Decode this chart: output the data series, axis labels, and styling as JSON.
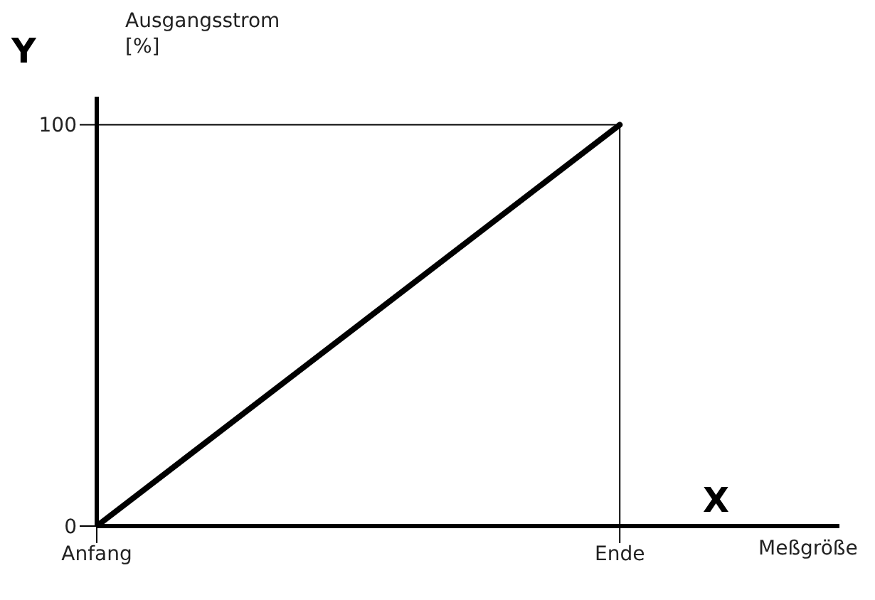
{
  "chart_data": {
    "type": "line",
    "ylabel": "Ausgangsstrom [%]",
    "xlabel": "Meßgröße",
    "annotations": [
      "Y",
      "X"
    ],
    "categories": [
      "Anfang",
      "Ende"
    ],
    "series": [
      {
        "color": "#000000",
        "values": [
          0,
          100
        ]
      }
    ],
    "ylim": [
      0,
      107
    ],
    "yticks": [
      0,
      100
    ],
    "ref_lines": [
      {
        "axis": "y",
        "value": 100,
        "color": "#000000"
      },
      {
        "axis": "x",
        "value": "Ende",
        "color": "#000000"
      }
    ],
    "marker": "none",
    "line_style": "solid"
  }
}
